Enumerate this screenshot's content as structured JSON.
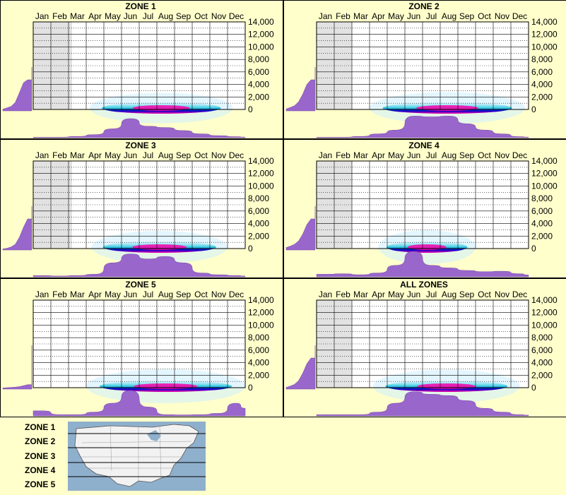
{
  "months": [
    "Jan",
    "Feb",
    "Mar",
    "Apr",
    "May",
    "Jun",
    "Jul",
    "Aug",
    "Sep",
    "Oct",
    "Nov",
    "Dec"
  ],
  "y_ticks": [
    "14,000",
    "12,000",
    "10,000",
    "8,000",
    "6,000",
    "4,000",
    "2,000",
    "0"
  ],
  "colors": {
    "background": "#ffffcc",
    "purple": "#9966cc",
    "shade": "#e2e2e2",
    "heat_low": "#cceeff",
    "heat_mid": "#33ccdd",
    "heat_high": "#0000cc",
    "heat_peak": "#ff00aa"
  },
  "chart_data": [
    {
      "type": "heatmap",
      "title": "ZONE 1",
      "x": [
        "Jan",
        "Feb",
        "Mar",
        "Apr",
        "May",
        "Jun",
        "Jul",
        "Aug",
        "Sep",
        "Oct",
        "Nov",
        "Dec"
      ],
      "ylim": [
        0,
        14000
      ],
      "y_tick_values": [
        0,
        2000,
        4000,
        6000,
        8000,
        10000,
        12000,
        14000
      ],
      "shaded_months": 2.2,
      "heat_extent": [
        3.2,
        11.3
      ],
      "seasonal_profile": [
        0.02,
        0.02,
        0.05,
        0.12,
        0.35,
        0.75,
        0.45,
        0.4,
        0.28,
        0.15,
        0.08,
        0.04
      ],
      "elevation_profile": [
        0.2,
        0.28,
        0.35,
        0.5,
        0.75,
        0.95,
        1.0,
        1.0
      ]
    },
    {
      "type": "heatmap",
      "title": "ZONE 2",
      "x": [
        "Jan",
        "Feb",
        "Mar",
        "Apr",
        "May",
        "Jun",
        "Jul",
        "Aug",
        "Sep",
        "Oct",
        "Nov",
        "Dec"
      ],
      "ylim": [
        0,
        14000
      ],
      "y_tick_values": [
        0,
        2000,
        4000,
        6000,
        8000,
        10000,
        12000,
        14000
      ],
      "shaded_months": 2,
      "heat_extent": [
        3.0,
        11.8
      ],
      "seasonal_profile": [
        0.02,
        0.02,
        0.05,
        0.15,
        0.3,
        0.85,
        0.82,
        0.85,
        0.55,
        0.3,
        0.15,
        0.04
      ],
      "elevation_profile": [
        0.22,
        0.3,
        0.38,
        0.52,
        0.72,
        0.92,
        1.0,
        1.0
      ]
    },
    {
      "type": "heatmap",
      "title": "ZONE 3",
      "x": [
        "Jan",
        "Feb",
        "Mar",
        "Apr",
        "May",
        "Jun",
        "Jul",
        "Aug",
        "Sep",
        "Oct",
        "Nov",
        "Dec"
      ],
      "ylim": [
        0,
        14000
      ],
      "y_tick_values": [
        0,
        2000,
        4000,
        6000,
        8000,
        10000,
        12000,
        14000
      ],
      "shaded_months": 2.2,
      "heat_extent": [
        3.3,
        11.0
      ],
      "seasonal_profile": [
        0.05,
        0.03,
        0.05,
        0.1,
        0.55,
        0.9,
        0.7,
        0.8,
        0.55,
        0.15,
        0.08,
        0.05
      ],
      "elevation_profile": [
        0.15,
        0.2,
        0.28,
        0.4,
        0.62,
        0.85,
        1.0,
        1.0
      ]
    },
    {
      "type": "heatmap",
      "title": "ZONE 4",
      "x": [
        "Jan",
        "Feb",
        "Mar",
        "Apr",
        "May",
        "Jun",
        "Jul",
        "Aug",
        "Sep",
        "Oct",
        "Nov",
        "Dec"
      ],
      "ylim": [
        0,
        14000
      ],
      "y_tick_values": [
        0,
        2000,
        4000,
        6000,
        8000,
        10000,
        12000,
        14000
      ],
      "shaded_months": 2,
      "heat_extent": [
        3.5,
        9.0
      ],
      "seasonal_profile": [
        0.1,
        0.12,
        0.08,
        0.15,
        0.45,
        1.0,
        0.45,
        0.35,
        0.25,
        0.2,
        0.22,
        0.12
      ],
      "elevation_profile": [
        0.25,
        0.32,
        0.4,
        0.52,
        0.7,
        0.9,
        1.0,
        1.0
      ]
    },
    {
      "type": "heatmap",
      "title": "ZONE 5",
      "x": [
        "Jan",
        "Feb",
        "Mar",
        "Apr",
        "May",
        "Jun",
        "Jul",
        "Aug",
        "Sep",
        "Oct",
        "Nov",
        "Dec"
      ],
      "ylim": [
        0,
        14000
      ],
      "y_tick_values": [
        0,
        2000,
        4000,
        6000,
        8000,
        10000,
        12000,
        14000
      ],
      "shaded_months": 0,
      "heat_extent": [
        3.0,
        12.0
      ],
      "seasonal_profile": [
        0.2,
        0.05,
        0.05,
        0.15,
        0.5,
        1.0,
        0.35,
        0.05,
        0.04,
        0.05,
        0.1,
        0.5
      ],
      "elevation_profile": [
        0.15,
        0.18,
        0.2,
        0.22,
        0.25,
        0.3,
        0.35,
        0.35
      ]
    },
    {
      "type": "heatmap",
      "title": "ALL ZONES",
      "x": [
        "Jan",
        "Feb",
        "Mar",
        "Apr",
        "May",
        "Jun",
        "Jul",
        "Aug",
        "Sep",
        "Oct",
        "Nov",
        "Dec"
      ],
      "ylim": [
        0,
        14000
      ],
      "y_tick_values": [
        0,
        2000,
        4000,
        6000,
        8000,
        10000,
        12000,
        14000
      ],
      "shaded_months": 2,
      "heat_extent": [
        3.2,
        11.5
      ],
      "seasonal_profile": [
        0.05,
        0.05,
        0.05,
        0.15,
        0.5,
        0.95,
        0.85,
        0.8,
        0.6,
        0.3,
        0.15,
        0.05
      ],
      "elevation_profile": [
        0.2,
        0.28,
        0.36,
        0.5,
        0.7,
        0.9,
        1.0,
        1.0
      ]
    }
  ],
  "legend": {
    "zones": [
      "ZONE 1",
      "ZONE 2",
      "ZONE 3",
      "ZONE 4",
      "ZONE 5"
    ]
  }
}
